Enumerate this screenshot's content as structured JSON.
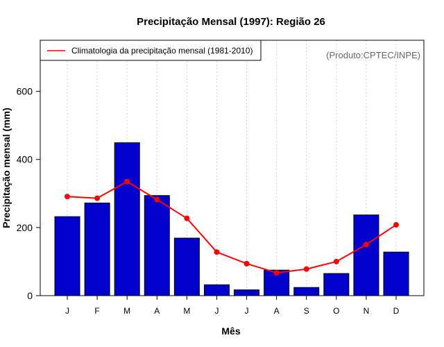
{
  "chart_data": {
    "type": "bar",
    "title": "Precipitação Mensal (1997): Região 26",
    "xlabel": "Mês",
    "ylabel": "Precipitação mensal (mm)",
    "ylim": [
      0,
      750
    ],
    "yticks": [
      0,
      200,
      400,
      600
    ],
    "categories": [
      "J",
      "F",
      "M",
      "A",
      "M",
      "J",
      "J",
      "A",
      "S",
      "O",
      "N",
      "D"
    ],
    "series": [
      {
        "name": "Precipitação mensal (1997)",
        "type": "bar",
        "color": "#0000cd",
        "values": [
          232,
          272,
          449,
          294,
          169,
          32,
          17,
          75,
          24,
          65,
          237,
          128
        ]
      },
      {
        "name": "Climatologia da precipitação mensal (1981-2010)",
        "type": "line",
        "color": "#ff0000",
        "values": [
          291,
          286,
          335,
          282,
          227,
          128,
          94,
          67,
          78,
          100,
          150,
          208
        ]
      }
    ],
    "legend": {
      "position": "top-left",
      "entries": [
        "Climatologia da precipitação mensal (1981-2010)"
      ]
    },
    "annotation": "(Produto:CPTEC/INPE)",
    "grid": {
      "vertical": true,
      "style": "dotted"
    }
  }
}
